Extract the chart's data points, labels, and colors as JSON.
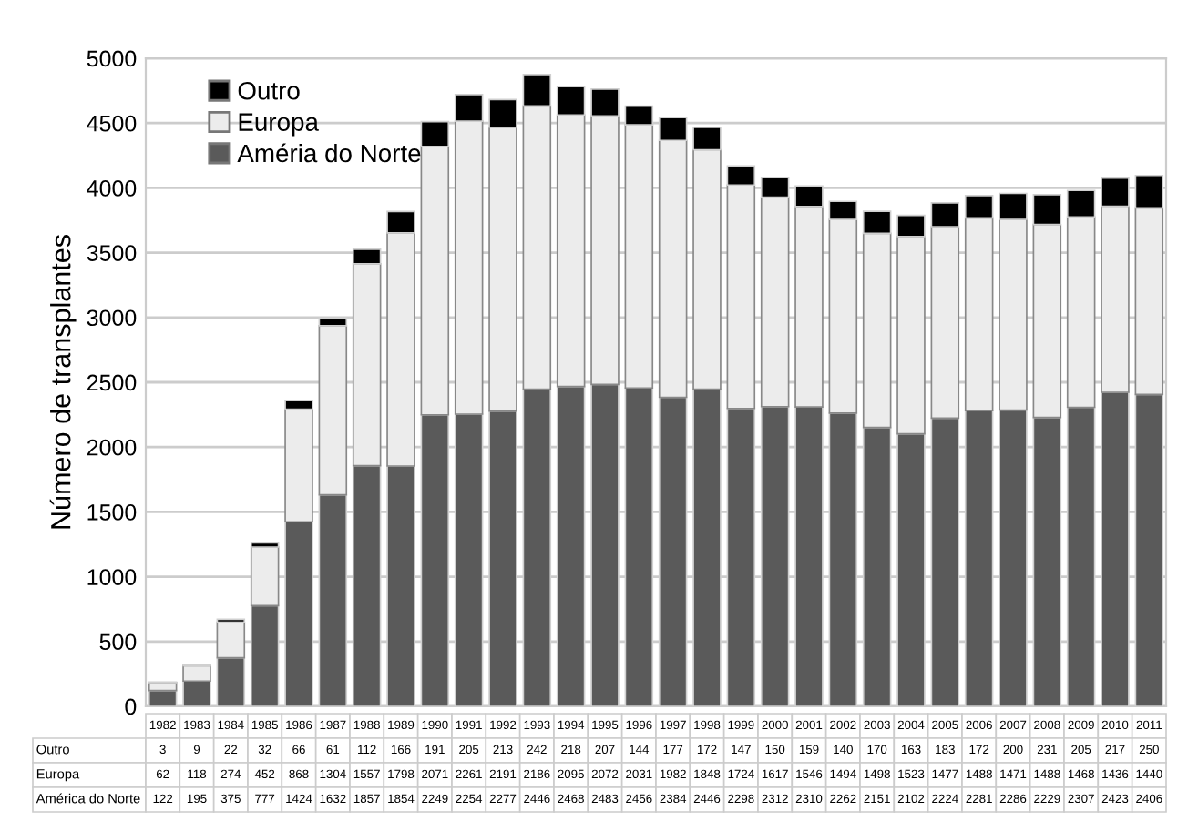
{
  "chart_data": {
    "type": "bar",
    "stacked": true,
    "ylabel": "Número de transplantes",
    "categories": [
      "1982",
      "1983",
      "1984",
      "1985",
      "1986",
      "1987",
      "1988",
      "1989",
      "1990",
      "1991",
      "1992",
      "1993",
      "1994",
      "1995",
      "1996",
      "1997",
      "1998",
      "1999",
      "2000",
      "2001",
      "2002",
      "2003",
      "2004",
      "2005",
      "2006",
      "2007",
      "2008",
      "2009",
      "2010",
      "2011"
    ],
    "series": [
      {
        "name": "Améria do Norte",
        "color": "#5a5a5a",
        "values": [
          122,
          195,
          375,
          777,
          1424,
          1632,
          1857,
          1854,
          2249,
          2254,
          2277,
          2446,
          2468,
          2483,
          2456,
          2384,
          2446,
          2298,
          2312,
          2310,
          2262,
          2151,
          2102,
          2224,
          2281,
          2286,
          2229,
          2307,
          2423,
          2406
        ]
      },
      {
        "name": "Europa",
        "color": "#ececec",
        "values": [
          62,
          118,
          274,
          452,
          868,
          1304,
          1557,
          1798,
          2071,
          2261,
          2191,
          2186,
          2095,
          2072,
          2031,
          1982,
          1848,
          1724,
          1617,
          1546,
          1494,
          1498,
          1523,
          1477,
          1488,
          1471,
          1488,
          1468,
          1436,
          1440
        ]
      },
      {
        "name": "Outro",
        "color": "#000000",
        "values": [
          3,
          9,
          22,
          32,
          66,
          61,
          112,
          166,
          191,
          205,
          213,
          242,
          218,
          207,
          144,
          177,
          172,
          147,
          150,
          159,
          140,
          170,
          163,
          183,
          172,
          200,
          231,
          205,
          217,
          250
        ]
      }
    ],
    "annotations": [
      "América do Norte"
    ],
    "ylim": [
      0,
      5000
    ],
    "yticks": [
      0,
      500,
      1000,
      1500,
      2000,
      2500,
      3000,
      3500,
      4000,
      4500,
      5000
    ],
    "grid": "y",
    "legend": "top left",
    "data_labels": true,
    "tick_labels": "y"
  }
}
